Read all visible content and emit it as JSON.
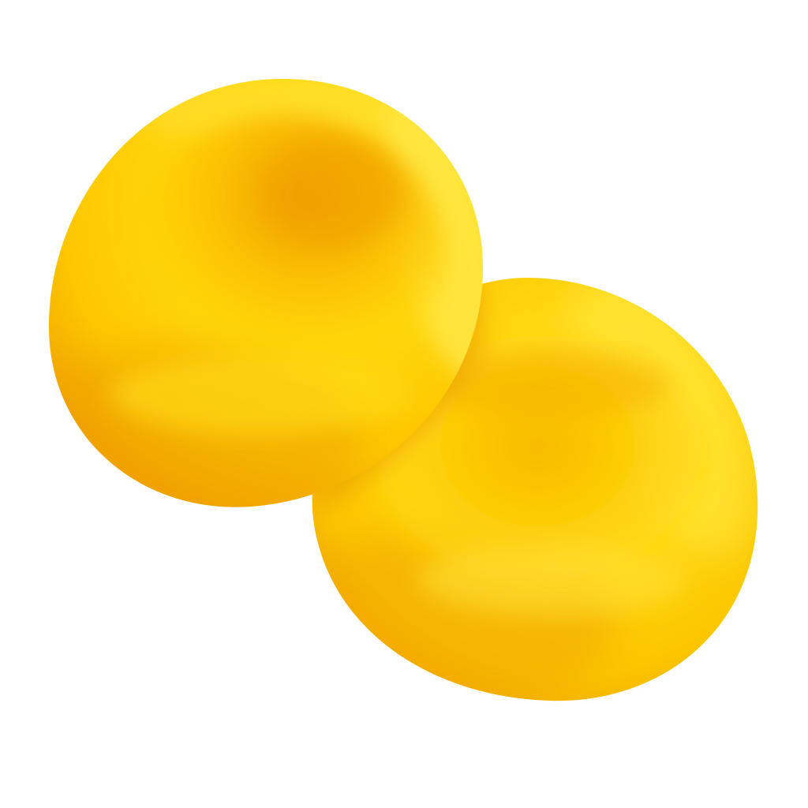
{
  "scene": {
    "subject": "two-yellow-disc-shapes",
    "background_color": "#ffffff",
    "palette": {
      "highlight": "#FFE23A",
      "base": "#FFD108",
      "mid": "#FBC200",
      "shadow": "#F2A600",
      "deep_shadow": "#EB9A00"
    }
  }
}
